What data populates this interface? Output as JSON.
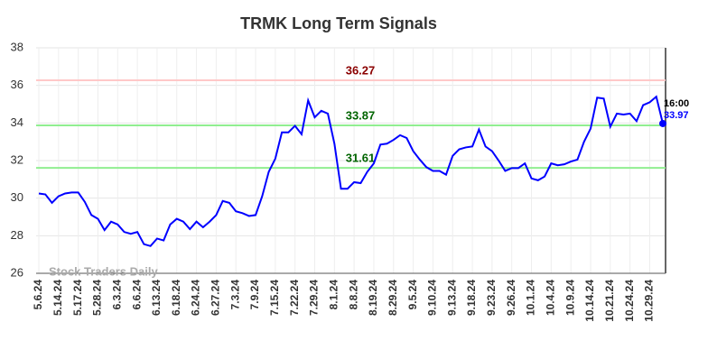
{
  "chart_data": {
    "type": "line",
    "title": "TRMK Long Term Signals",
    "watermark": "Stock Traders Daily",
    "last_time": "16:00",
    "color": "#0000ff",
    "categories": [
      "5.6.24",
      null,
      null,
      "5.14.24",
      null,
      null,
      "5.17.24",
      null,
      null,
      "5.28.24",
      null,
      null,
      "6.3.24",
      null,
      null,
      "6.6.24",
      null,
      null,
      "6.13.24",
      null,
      null,
      "6.18.24",
      null,
      null,
      "6.24.24",
      null,
      null,
      "6.27.24",
      null,
      null,
      "7.3.24",
      null,
      null,
      "7.9.24",
      null,
      null,
      "7.15.24",
      null,
      null,
      "7.22.24",
      null,
      null,
      "7.29.24",
      null,
      null,
      "8.1.24",
      null,
      null,
      "8.8.24",
      null,
      null,
      "8.19.24",
      null,
      null,
      "8.29.24",
      null,
      null,
      "9.5.24",
      null,
      null,
      "9.10.24",
      null,
      null,
      "9.13.24",
      null,
      null,
      "9.18.24",
      null,
      null,
      "9.23.24",
      null,
      null,
      "9.26.24",
      null,
      null,
      "10.1.24",
      null,
      null,
      "10.4.24",
      null,
      null,
      "10.9.24",
      null,
      null,
      "10.14.24",
      null,
      null,
      "10.21.24",
      null,
      null,
      "10.24.24",
      null,
      null,
      "10.29.24",
      null,
      null
    ],
    "values": [
      30.25,
      30.2,
      29.75,
      30.1,
      30.25,
      30.3,
      30.3,
      29.8,
      29.1,
      28.9,
      28.3,
      28.75,
      28.6,
      28.2,
      28.1,
      28.2,
      27.55,
      27.45,
      27.85,
      27.75,
      28.6,
      28.9,
      28.75,
      28.35,
      28.75,
      28.45,
      28.75,
      29.1,
      29.85,
      29.75,
      29.3,
      29.2,
      29.05,
      29.1,
      30.1,
      31.4,
      32.1,
      33.5,
      33.5,
      33.85,
      33.4,
      35.2,
      34.3,
      34.65,
      34.5,
      32.9,
      30.5,
      30.5,
      30.85,
      30.8,
      31.4,
      31.85,
      32.85,
      32.9,
      33.1,
      33.35,
      33.2,
      32.5,
      32.05,
      31.65,
      31.45,
      31.45,
      31.25,
      32.25,
      32.6,
      32.7,
      32.75,
      33.65,
      32.75,
      32.5,
      32.0,
      31.45,
      31.6,
      31.6,
      31.85,
      31.05,
      30.95,
      31.15,
      31.85,
      31.75,
      31.8,
      31.95,
      32.05,
      33.0,
      33.7,
      35.35,
      35.3,
      33.8,
      34.5,
      34.45,
      34.5,
      34.1,
      34.95,
      35.1,
      35.4,
      33.97
    ],
    "hlines": [
      {
        "value": 36.27,
        "color": "#ffc8c8",
        "label_color": "#8b0000"
      },
      {
        "value": 33.87,
        "color": "#90ee90",
        "label_color": "#006400"
      },
      {
        "value": 31.61,
        "color": "#90ee90",
        "label_color": "#006400"
      }
    ],
    "ylim": [
      26,
      38
    ],
    "yticks": [
      26,
      28,
      30,
      32,
      34,
      36,
      38
    ],
    "grid": true
  }
}
